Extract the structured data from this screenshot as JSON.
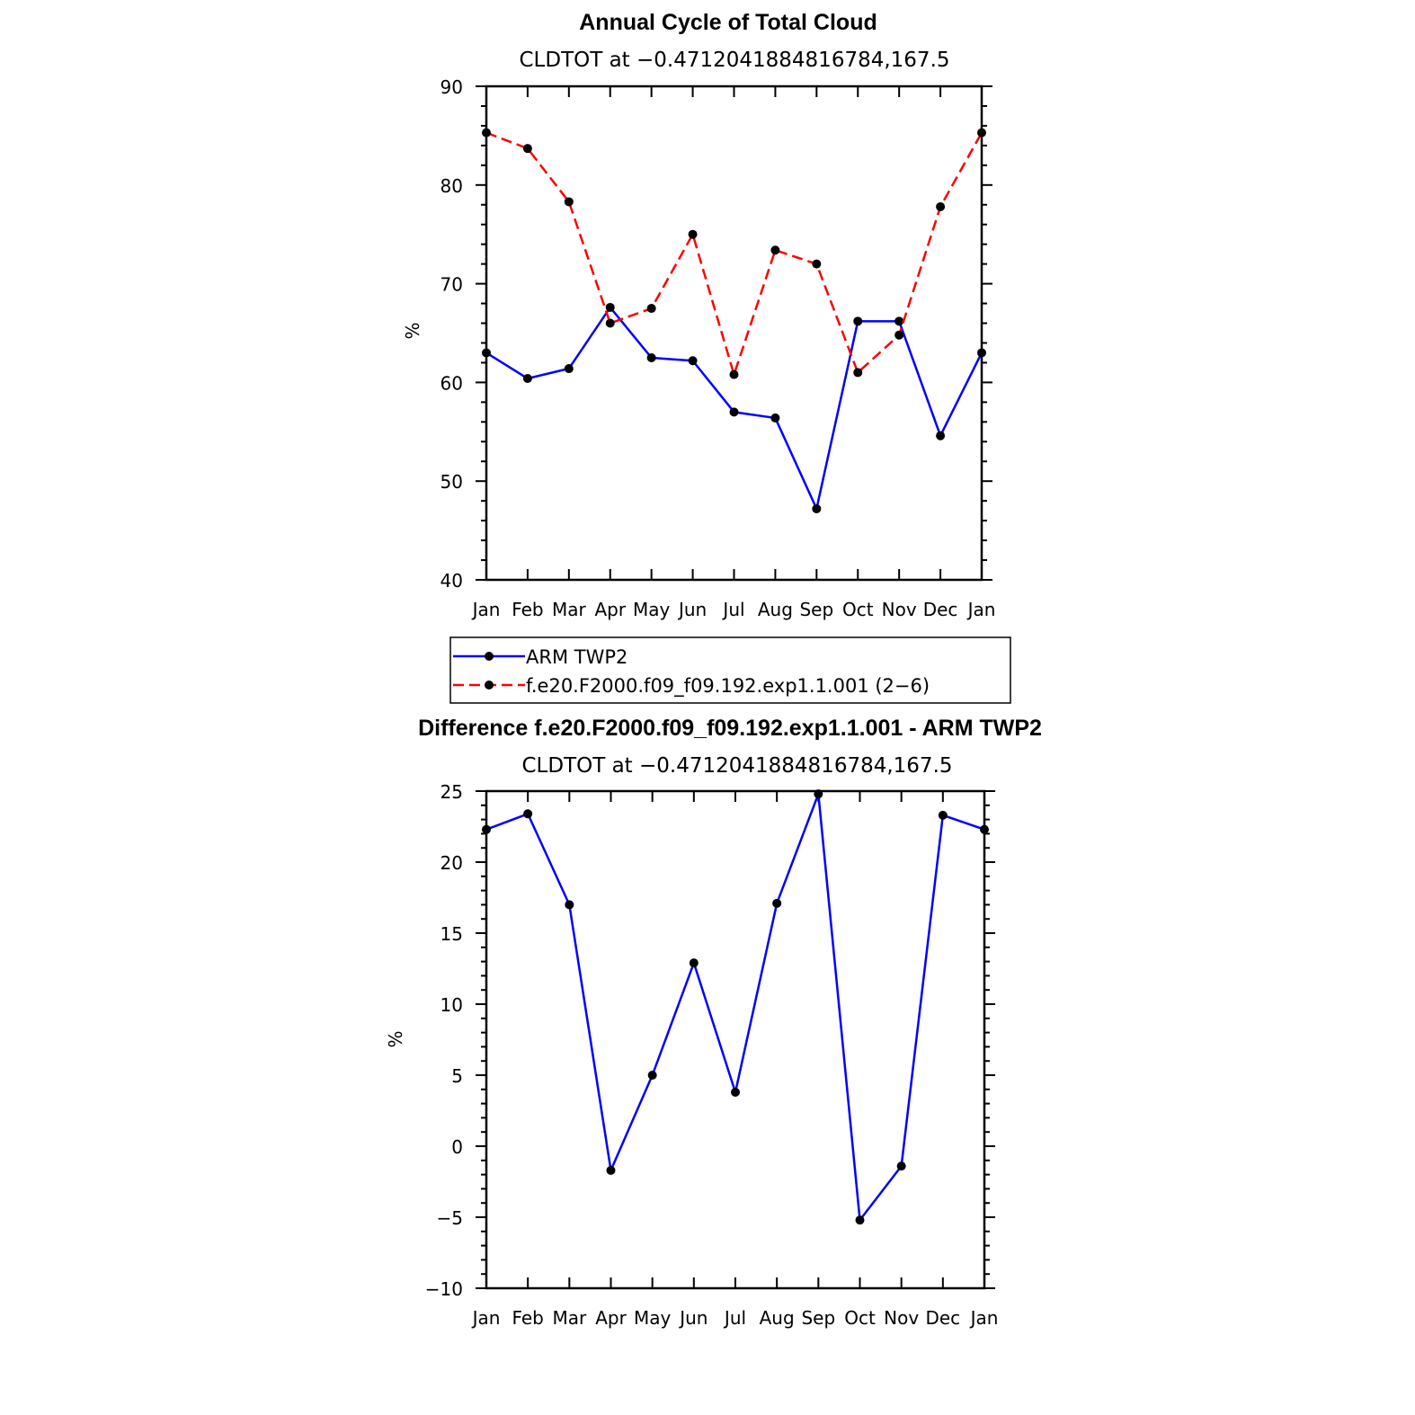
{
  "chart_data": [
    {
      "type": "line",
      "title": "Annual Cycle of Total Cloud",
      "subtitle": "CLDTOT at −0.4712041884816784,167.5",
      "ylabel": "%",
      "xlabel": "",
      "categories": [
        "Jan",
        "Feb",
        "Mar",
        "Apr",
        "May",
        "Jun",
        "Jul",
        "Aug",
        "Sep",
        "Oct",
        "Nov",
        "Dec",
        "Jan"
      ],
      "ylim": [
        40,
        90
      ],
      "yticks": [
        40,
        50,
        60,
        70,
        80,
        90
      ],
      "ytick_labels": [
        "40",
        "50",
        "60",
        "70",
        "80",
        "90"
      ],
      "grid": false,
      "series": [
        {
          "name": "ARM TWP2",
          "color": "#0000ff",
          "dash": "solid",
          "values": [
            63.0,
            60.4,
            61.4,
            67.6,
            62.5,
            62.2,
            57.0,
            56.4,
            47.2,
            66.2,
            66.2,
            54.6,
            63.0
          ]
        },
        {
          "name": "f.e20.F2000.f09_f09.192.exp1.1.001 (2−6)",
          "color": "#ff0000",
          "dash": "dashed",
          "values": [
            85.3,
            83.7,
            78.3,
            66.0,
            67.5,
            75.0,
            60.8,
            73.4,
            72.0,
            61.0,
            64.8,
            77.8,
            85.3
          ]
        }
      ],
      "legend": {
        "placement": "bottom-center",
        "entries": [
          "ARM TWP2",
          "f.e20.F2000.f09_f09.192.exp1.1.001 (2−6)"
        ]
      }
    },
    {
      "type": "line",
      "title": "Difference f.e20.F2000.f09_f09.192.exp1.1.001 - ARM TWP2",
      "subtitle": "CLDTOT at −0.4712041884816784,167.5",
      "ylabel": "%",
      "xlabel": "",
      "categories": [
        "Jan",
        "Feb",
        "Mar",
        "Apr",
        "May",
        "Jun",
        "Jul",
        "Aug",
        "Sep",
        "Oct",
        "Nov",
        "Dec",
        "Jan"
      ],
      "ylim": [
        -10,
        25
      ],
      "yticks": [
        -10,
        -5,
        0,
        5,
        10,
        15,
        20,
        25
      ],
      "ytick_labels": [
        "−10",
        "−5",
        "0",
        "5",
        "10",
        "15",
        "20",
        "25"
      ],
      "grid": false,
      "series": [
        {
          "color": "#0000ff",
          "dash": "solid",
          "values": [
            22.3,
            23.4,
            17.0,
            -1.7,
            5.0,
            12.9,
            3.8,
            17.1,
            24.8,
            -5.2,
            -1.4,
            23.3,
            22.3
          ]
        }
      ]
    }
  ]
}
